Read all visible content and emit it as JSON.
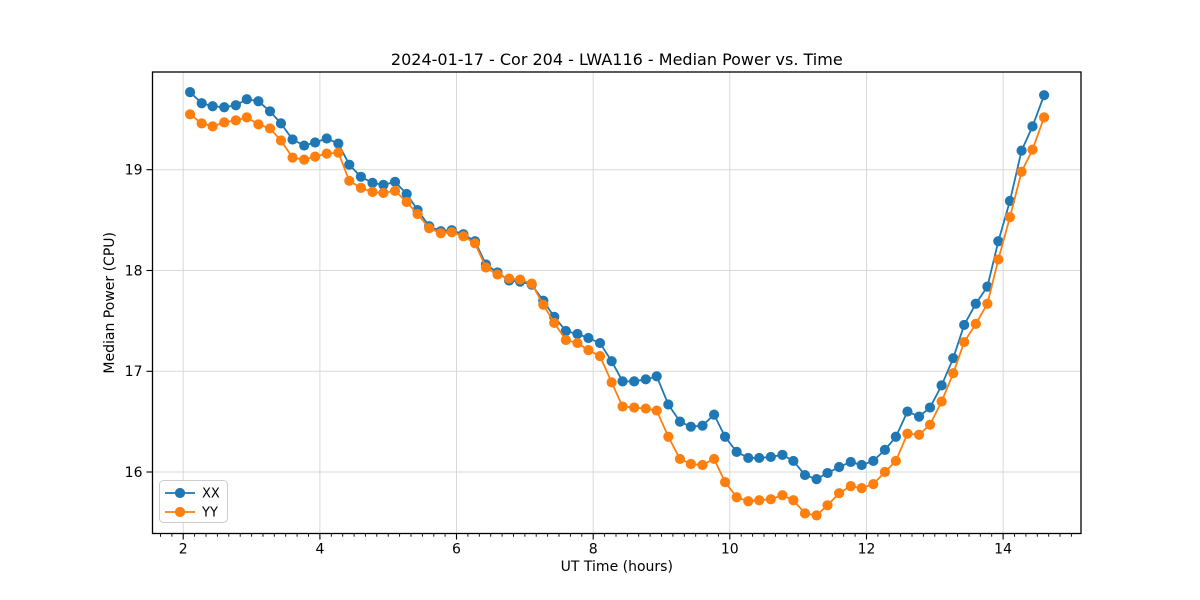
{
  "chart_data": {
    "type": "line",
    "title": "2024-01-17 - Cor 204 - LWA116 - Median Power vs. Time",
    "xlabel": "UT Time (hours)",
    "ylabel": "Median Power (CPU)",
    "xlim": [
      1.55,
      15.14
    ],
    "ylim": [
      15.39,
      19.97
    ],
    "x_ticks": [
      2,
      4,
      6,
      8,
      10,
      12,
      14
    ],
    "y_ticks": [
      16,
      17,
      18,
      19
    ],
    "x_minor_step": 0.166667,
    "grid": true,
    "legend": {
      "position": "lower left",
      "entries": [
        "XX",
        "YY"
      ]
    },
    "x": [
      2.1,
      2.27,
      2.43,
      2.6,
      2.77,
      2.93,
      3.1,
      3.27,
      3.43,
      3.6,
      3.77,
      3.93,
      4.1,
      4.27,
      4.43,
      4.6,
      4.77,
      4.93,
      5.1,
      5.27,
      5.43,
      5.6,
      5.77,
      5.93,
      6.1,
      6.27,
      6.43,
      6.6,
      6.77,
      6.93,
      7.1,
      7.27,
      7.43,
      7.6,
      7.77,
      7.93,
      8.1,
      8.27,
      8.43,
      8.6,
      8.77,
      8.93,
      9.1,
      9.27,
      9.43,
      9.6,
      9.77,
      9.93,
      10.1,
      10.27,
      10.43,
      10.6,
      10.77,
      10.93,
      11.1,
      11.27,
      11.43,
      11.6,
      11.77,
      11.93,
      12.1,
      12.27,
      12.43,
      12.6,
      12.77,
      12.93,
      13.1,
      13.27,
      13.43,
      13.6,
      13.77,
      13.93,
      14.1,
      14.27,
      14.43,
      14.6
    ],
    "series": [
      {
        "name": "XX",
        "color": "#1f77b4",
        "values": [
          19.77,
          19.66,
          19.63,
          19.62,
          19.64,
          19.7,
          19.68,
          19.58,
          19.46,
          19.3,
          19.24,
          19.27,
          19.31,
          19.26,
          19.05,
          18.93,
          18.87,
          18.85,
          18.88,
          18.76,
          18.6,
          18.44,
          18.39,
          18.4,
          18.36,
          18.29,
          18.06,
          17.98,
          17.9,
          17.89,
          17.86,
          17.7,
          17.54,
          17.4,
          17.37,
          17.33,
          17.28,
          17.1,
          16.9,
          16.9,
          16.92,
          16.95,
          16.67,
          16.5,
          16.45,
          16.46,
          16.57,
          16.35,
          16.2,
          16.14,
          16.14,
          16.15,
          16.17,
          16.11,
          15.97,
          15.93,
          15.99,
          16.05,
          16.1,
          16.07,
          16.11,
          16.22,
          16.35,
          16.6,
          16.55,
          16.64,
          16.86,
          17.13,
          17.46,
          17.67,
          17.84,
          18.29,
          18.69,
          19.19,
          19.43,
          19.74
        ]
      },
      {
        "name": "YY",
        "color": "#ff7f0e",
        "values": [
          19.55,
          19.46,
          19.43,
          19.47,
          19.49,
          19.52,
          19.45,
          19.41,
          19.29,
          19.12,
          19.1,
          19.13,
          19.16,
          19.17,
          18.89,
          18.82,
          18.78,
          18.77,
          18.79,
          18.68,
          18.56,
          18.42,
          18.37,
          18.38,
          18.34,
          18.27,
          18.03,
          17.96,
          17.92,
          17.91,
          17.87,
          17.66,
          17.48,
          17.31,
          17.28,
          17.21,
          17.15,
          16.89,
          16.65,
          16.64,
          16.63,
          16.61,
          16.35,
          16.13,
          16.08,
          16.07,
          16.13,
          15.9,
          15.75,
          15.71,
          15.72,
          15.73,
          15.77,
          15.72,
          15.59,
          15.57,
          15.67,
          15.79,
          15.86,
          15.84,
          15.88,
          16.0,
          16.11,
          16.38,
          16.37,
          16.47,
          16.7,
          16.98,
          17.29,
          17.47,
          17.67,
          18.11,
          18.53,
          18.98,
          19.2,
          19.52
        ]
      }
    ],
    "colors": {
      "background": "#ffffff",
      "grid": "#d9d9d9",
      "spine": "#000000",
      "legend_border": "#cccccc"
    }
  }
}
